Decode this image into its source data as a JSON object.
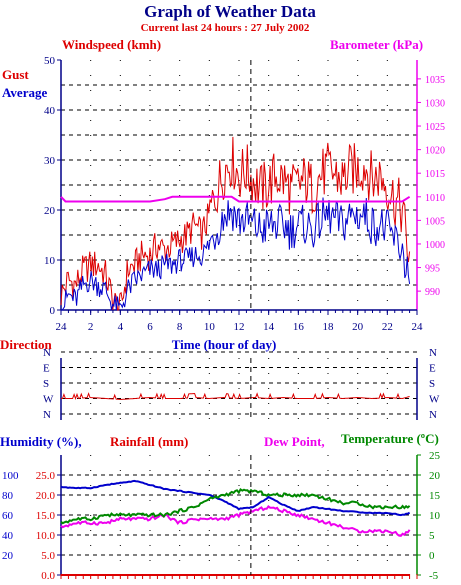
{
  "header": {
    "title": "Graph of Weather Data",
    "subtitle": "Current last 24 hours : 27 July 2002"
  },
  "colors": {
    "red": "#dd0000",
    "blue": "#0000cc",
    "magenta": "#ee00ee",
    "green": "#008800",
    "dark_blue": "#000088",
    "grid": "#000000"
  },
  "chart_data": [
    {
      "type": "line",
      "name": "wind-barometer",
      "labels": {
        "windspeed": "Windspeed (kmh)",
        "barometer": "Barometer (kPa)",
        "gust": "Gust",
        "average": "Average",
        "xlabel": "Time (hour of day)"
      },
      "x_ticks": [
        "24",
        "2",
        "4",
        "6",
        "8",
        "10",
        "12",
        "14",
        "16",
        "18",
        "20",
        "22",
        "24"
      ],
      "xlim": [
        0,
        24
      ],
      "y_left": {
        "ticks": [
          "0",
          "10",
          "20",
          "30",
          "40",
          "50"
        ],
        "ylim": [
          0,
          50
        ]
      },
      "y_right": {
        "ticks": [
          "990",
          "995",
          "1000",
          "1005",
          "1010",
          "1015",
          "1020",
          "1025",
          "1030",
          "1035"
        ],
        "ylim": [
          986,
          1039
        ]
      },
      "series": [
        {
          "name": "Gust",
          "color": "#dd0000",
          "x": [
            0,
            0.5,
            1,
            1.5,
            2,
            2.5,
            3,
            3.5,
            4,
            4.5,
            5,
            5.5,
            6,
            6.5,
            7,
            7.5,
            8,
            8.5,
            9,
            9.5,
            10,
            10.5,
            11,
            11.5,
            12,
            12.5,
            13,
            13.5,
            14,
            14.5,
            15,
            15.5,
            16,
            16.5,
            17,
            17.5,
            18,
            18.5,
            19,
            19.5,
            20,
            20.5,
            21,
            21.5,
            22,
            22.5,
            23,
            23.5
          ],
          "values": [
            3,
            6,
            5,
            8,
            9,
            9,
            7,
            2,
            0,
            8,
            9,
            11,
            11,
            13,
            12,
            13,
            14,
            15,
            17,
            15,
            19,
            24,
            28,
            30,
            27,
            28,
            26,
            24,
            25,
            27,
            26,
            24,
            25,
            26,
            24,
            27,
            28,
            27,
            26,
            28,
            28,
            29,
            26,
            27,
            25,
            22,
            20,
            10
          ]
        },
        {
          "name": "Average",
          "color": "#0000cc",
          "x": [
            0,
            0.5,
            1,
            1.5,
            2,
            2.5,
            3,
            3.5,
            4,
            4.5,
            5,
            5.5,
            6,
            6.5,
            7,
            7.5,
            8,
            8.5,
            9,
            9.5,
            10,
            10.5,
            11,
            11.5,
            12,
            12.5,
            13,
            13.5,
            14,
            14.5,
            15,
            15.5,
            16,
            16.5,
            17,
            17.5,
            18,
            18.5,
            19,
            19.5,
            20,
            20.5,
            21,
            21.5,
            22,
            22.5,
            23,
            23.5
          ],
          "values": [
            0,
            3,
            2,
            5,
            6,
            5,
            4,
            1,
            0,
            4,
            6,
            7,
            8,
            8,
            9,
            9,
            10,
            10,
            11,
            11,
            13,
            16,
            19,
            20,
            18,
            18,
            17,
            16,
            17,
            17,
            17,
            16,
            17,
            17,
            16,
            18,
            19,
            18,
            17,
            19,
            19,
            19,
            17,
            17,
            16,
            14,
            12,
            6
          ]
        },
        {
          "name": "Barometer",
          "color": "#ee00ee",
          "axis": "right",
          "x": [
            0,
            0.3,
            4,
            5,
            6,
            7,
            7.5,
            10,
            10.5,
            11.5,
            12,
            16,
            18,
            20,
            22,
            23,
            23.5
          ],
          "values": [
            1010,
            1009,
            1009,
            1009,
            1009,
            1009.5,
            1010,
            1010,
            1010,
            1010,
            1009,
            1009,
            1009,
            1009,
            1009,
            1009,
            1010
          ]
        }
      ],
      "annotations": [
        {
          "x": 12.8,
          "style": "dashed"
        }
      ]
    },
    {
      "type": "line",
      "name": "direction",
      "labels": {
        "title": "Direction"
      },
      "y_ticks": [
        "N",
        "W",
        "S",
        "E",
        "N"
      ],
      "series": [
        {
          "name": "Direction",
          "color": "#dd0000",
          "x": [
            0,
            1,
            2,
            3,
            4,
            5,
            6,
            7,
            8,
            9,
            10,
            11,
            12,
            13,
            14,
            15,
            16,
            17,
            18,
            19,
            20,
            21,
            22,
            23,
            23.5
          ],
          "values": [
            0.6,
            0.6,
            0.7,
            0.6,
            0.5,
            0.6,
            0.7,
            0.6,
            0.6,
            0.7,
            0.6,
            0.7,
            0.6,
            0.7,
            0.6,
            0.7,
            0.6,
            0.6,
            0.7,
            0.6,
            0.7,
            0.6,
            0.7,
            0.6,
            0.8
          ]
        }
      ],
      "annotations": [
        {
          "x": 12.8,
          "style": "dashed"
        }
      ]
    },
    {
      "type": "line",
      "name": "humidity-rainfall-temp",
      "labels": {
        "humidity": "Humidity (%),",
        "rainfall": "Rainfall (mm)",
        "dewpoint": "Dew Point,",
        "temperature": "Temperature (ºC)"
      },
      "y_humidity": {
        "ticks": [
          "20",
          "40",
          "60",
          "80",
          "100"
        ],
        "ylim": [
          0,
          120
        ]
      },
      "y_rainfall": {
        "ticks": [
          "0.0",
          "5.0",
          "10.0",
          "15.0",
          "20.0",
          "25.0"
        ],
        "ylim": [
          0,
          30
        ]
      },
      "y_temp": {
        "ticks": [
          "-5",
          "0",
          "5",
          "10",
          "15",
          "20",
          "25"
        ],
        "ylim": [
          -5,
          25
        ]
      },
      "series": [
        {
          "name": "Humidity",
          "color": "#0000cc",
          "x": [
            0,
            1,
            2,
            3,
            4,
            5,
            6,
            7,
            8,
            9,
            10,
            11,
            12,
            13,
            14,
            15,
            16,
            17,
            18,
            19,
            20,
            21,
            22,
            23,
            23.5
          ],
          "values": [
            88,
            87,
            87,
            90,
            92,
            94,
            90,
            86,
            84,
            82,
            80,
            74,
            66,
            68,
            78,
            70,
            64,
            68,
            66,
            64,
            63,
            62,
            62,
            60,
            62
          ]
        },
        {
          "name": "Dew Point",
          "color": "#ee00ee",
          "axis": "temp",
          "x": [
            0,
            1,
            2,
            3,
            4,
            5,
            6,
            7,
            8,
            9,
            10,
            11,
            12,
            13,
            14,
            15,
            16,
            17,
            18,
            19,
            20,
            21,
            22,
            23,
            23.5
          ],
          "values": [
            7,
            8,
            8,
            8,
            9,
            9,
            9,
            10,
            8,
            9,
            9,
            9,
            10,
            11,
            12,
            11,
            10,
            9,
            8,
            7,
            6,
            6,
            6,
            5,
            6
          ]
        },
        {
          "name": "Temperature",
          "color": "#008800",
          "axis": "temp",
          "x": [
            0,
            1,
            2,
            3,
            4,
            5,
            6,
            7,
            8,
            9,
            10,
            11,
            12,
            13,
            14,
            15,
            16,
            17,
            18,
            19,
            20,
            21,
            22,
            23,
            23.5
          ],
          "values": [
            8,
            9,
            9,
            10,
            10,
            10,
            10,
            10,
            11,
            12,
            14,
            15,
            16,
            16,
            15,
            15,
            15,
            15,
            14,
            13,
            13,
            12,
            12,
            12,
            12
          ]
        },
        {
          "name": "Rainfall",
          "color": "#dd0000",
          "axis": "rainfall",
          "x": [
            0,
            23.5
          ],
          "values": [
            0,
            0
          ]
        }
      ],
      "annotations": [
        {
          "x": 12.8,
          "style": "dashed"
        }
      ]
    }
  ]
}
